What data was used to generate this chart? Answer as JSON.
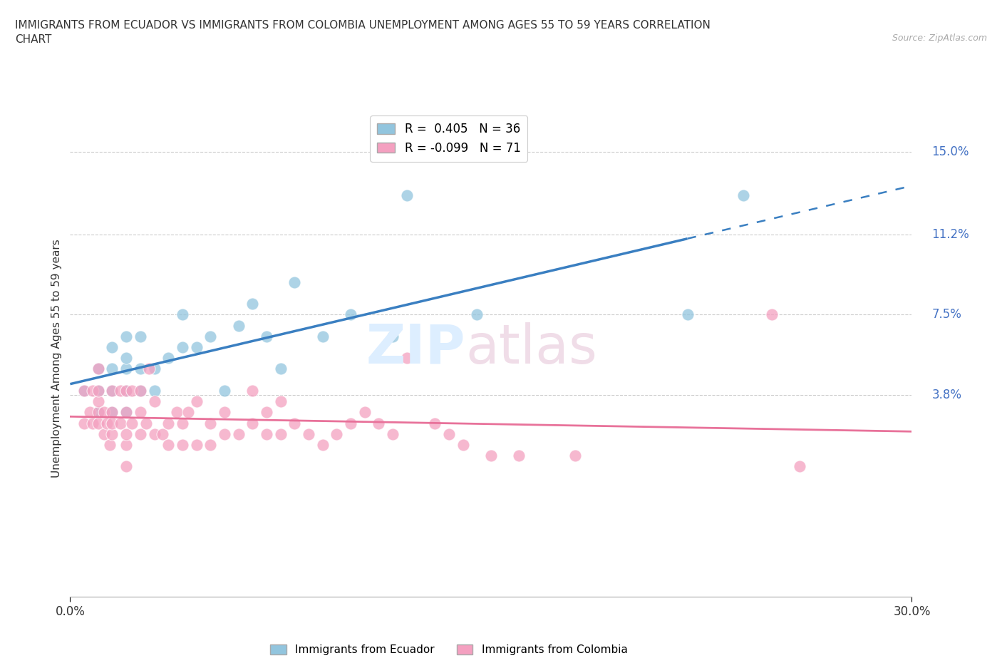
{
  "title": "IMMIGRANTS FROM ECUADOR VS IMMIGRANTS FROM COLOMBIA UNEMPLOYMENT AMONG AGES 55 TO 59 YEARS CORRELATION\nCHART",
  "source_text": "Source: ZipAtlas.com",
  "ylabel": "Unemployment Among Ages 55 to 59 years",
  "xlim": [
    0.0,
    0.3
  ],
  "ylim": [
    -0.055,
    0.165
  ],
  "ytick_vals": [
    0.038,
    0.075,
    0.112,
    0.15
  ],
  "ytick_labels": [
    "3.8%",
    "7.5%",
    "11.2%",
    "15.0%"
  ],
  "xtick_vals": [
    0.0,
    0.3
  ],
  "xtick_labels": [
    "0.0%",
    "30.0%"
  ],
  "ecuador_R": 0.405,
  "ecuador_N": 36,
  "colombia_R": -0.099,
  "colombia_N": 71,
  "ecuador_color": "#92c5de",
  "colombia_color": "#f4a0c0",
  "ecuador_line_color": "#3a7fc1",
  "colombia_line_color": "#e8729a",
  "ecuador_line_solid_end": 0.22,
  "grid_color": "#cccccc",
  "background_color": "#ffffff",
  "ecuador_x": [
    0.005,
    0.01,
    0.01,
    0.01,
    0.015,
    0.015,
    0.015,
    0.015,
    0.02,
    0.02,
    0.02,
    0.02,
    0.02,
    0.025,
    0.025,
    0.025,
    0.03,
    0.03,
    0.035,
    0.04,
    0.04,
    0.045,
    0.05,
    0.055,
    0.06,
    0.065,
    0.07,
    0.075,
    0.08,
    0.09,
    0.1,
    0.115,
    0.12,
    0.145,
    0.22,
    0.24
  ],
  "ecuador_y": [
    0.04,
    0.03,
    0.04,
    0.05,
    0.03,
    0.04,
    0.05,
    0.06,
    0.03,
    0.04,
    0.05,
    0.055,
    0.065,
    0.04,
    0.05,
    0.065,
    0.04,
    0.05,
    0.055,
    0.06,
    0.075,
    0.06,
    0.065,
    0.04,
    0.07,
    0.08,
    0.065,
    0.05,
    0.09,
    0.065,
    0.075,
    0.065,
    0.13,
    0.075,
    0.075,
    0.13
  ],
  "colombia_x": [
    0.005,
    0.005,
    0.007,
    0.008,
    0.008,
    0.01,
    0.01,
    0.01,
    0.01,
    0.01,
    0.012,
    0.012,
    0.013,
    0.014,
    0.015,
    0.015,
    0.015,
    0.015,
    0.018,
    0.018,
    0.02,
    0.02,
    0.02,
    0.02,
    0.02,
    0.022,
    0.022,
    0.025,
    0.025,
    0.025,
    0.027,
    0.028,
    0.03,
    0.03,
    0.033,
    0.035,
    0.035,
    0.038,
    0.04,
    0.04,
    0.042,
    0.045,
    0.045,
    0.05,
    0.05,
    0.055,
    0.055,
    0.06,
    0.065,
    0.065,
    0.07,
    0.07,
    0.075,
    0.075,
    0.08,
    0.085,
    0.09,
    0.095,
    0.1,
    0.105,
    0.11,
    0.115,
    0.12,
    0.13,
    0.135,
    0.14,
    0.15,
    0.16,
    0.18,
    0.25,
    0.26
  ],
  "colombia_y": [
    0.025,
    0.04,
    0.03,
    0.025,
    0.04,
    0.025,
    0.03,
    0.035,
    0.04,
    0.05,
    0.02,
    0.03,
    0.025,
    0.015,
    0.02,
    0.025,
    0.03,
    0.04,
    0.025,
    0.04,
    0.005,
    0.015,
    0.02,
    0.03,
    0.04,
    0.025,
    0.04,
    0.02,
    0.03,
    0.04,
    0.025,
    0.05,
    0.02,
    0.035,
    0.02,
    0.015,
    0.025,
    0.03,
    0.015,
    0.025,
    0.03,
    0.015,
    0.035,
    0.015,
    0.025,
    0.02,
    0.03,
    0.02,
    0.025,
    0.04,
    0.02,
    0.03,
    0.02,
    0.035,
    0.025,
    0.02,
    0.015,
    0.02,
    0.025,
    0.03,
    0.025,
    0.02,
    0.055,
    0.025,
    0.02,
    0.015,
    0.01,
    0.01,
    0.01,
    0.075,
    0.005
  ],
  "legend_top_labels": [
    "R =  0.405   N = 36",
    "R = -0.099   N = 71"
  ],
  "legend_bottom_labels": [
    "Immigrants from Ecuador",
    "Immigrants from Colombia"
  ]
}
